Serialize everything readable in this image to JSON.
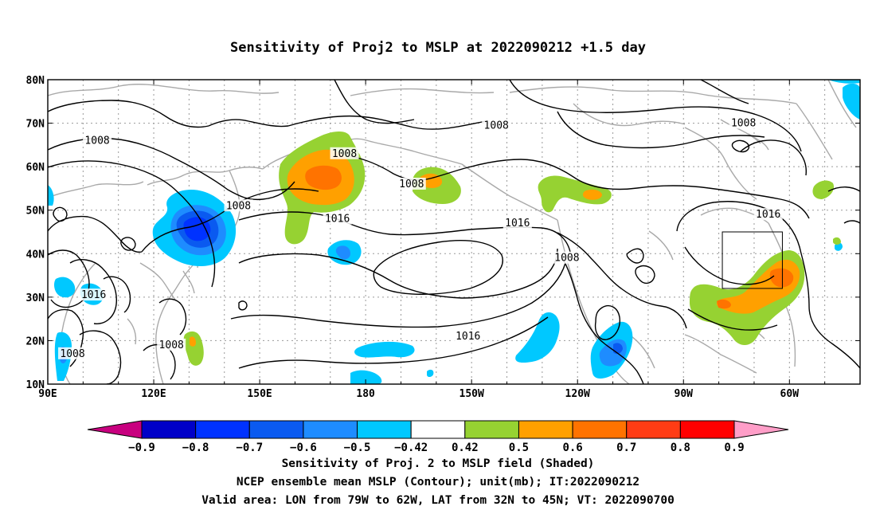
{
  "title": "Sensitivity of Proj2 to MSLP at 2022090212 +1.5 day",
  "lat_ticks": [
    "80N",
    "70N",
    "60N",
    "50N",
    "40N",
    "30N",
    "20N",
    "10N"
  ],
  "lon_ticks": [
    "90E",
    "120E",
    "150E",
    "180",
    "150W",
    "120W",
    "90W",
    "60W"
  ],
  "contour_labels": [
    {
      "text": "1008",
      "lon": 104,
      "lat": 66
    },
    {
      "text": "1008",
      "lon": 174,
      "lat": 63
    },
    {
      "text": "1008",
      "lon": 217,
      "lat": 69.5
    },
    {
      "text": "1008",
      "lon": 144,
      "lat": 51
    },
    {
      "text": "1008",
      "lon": 193,
      "lat": 56
    },
    {
      "text": "1008",
      "lon": 287,
      "lat": 70
    },
    {
      "text": "1016",
      "lon": 172,
      "lat": 48
    },
    {
      "text": "1016",
      "lon": 223,
      "lat": 47
    },
    {
      "text": "1016",
      "lon": 294,
      "lat": 49
    },
    {
      "text": "1016",
      "lon": 103,
      "lat": 30.5
    },
    {
      "text": "1016",
      "lon": 209,
      "lat": 21
    },
    {
      "text": "1008",
      "lon": 237,
      "lat": 39
    },
    {
      "text": "1008",
      "lon": 97,
      "lat": 17
    },
    {
      "text": "1008",
      "lon": 125,
      "lat": 19
    }
  ],
  "legend": {
    "labels": [
      "-0.9",
      "-0.8",
      "-0.7",
      "-0.6",
      "-0.5",
      "-0.42",
      "0.42",
      "0.5",
      "0.6",
      "0.7",
      "0.8",
      "0.9"
    ],
    "colors": [
      "#c8007f",
      "#0000c8",
      "#0032ff",
      "#0a5af0",
      "#1e8cff",
      "#00c8ff",
      "#ffffff",
      "#96d232",
      "#ffa000",
      "#ff7300",
      "#ff3c14",
      "#ff0000",
      "#ff9ec8"
    ]
  },
  "valid_box": {
    "lon_from": 281,
    "lon_to": 298,
    "lat_from": 32,
    "lat_to": 45
  },
  "captions": {
    "line1": "Sensitivity of Proj. 2 to MSLP field (Shaded)",
    "line2": "NCEP ensemble mean MSLP (Contour); unit(mb); IT:2022090212",
    "line3": "Valid area: LON from 79W to 62W, LAT from 32N to 45N; VT: 2022090700"
  }
}
